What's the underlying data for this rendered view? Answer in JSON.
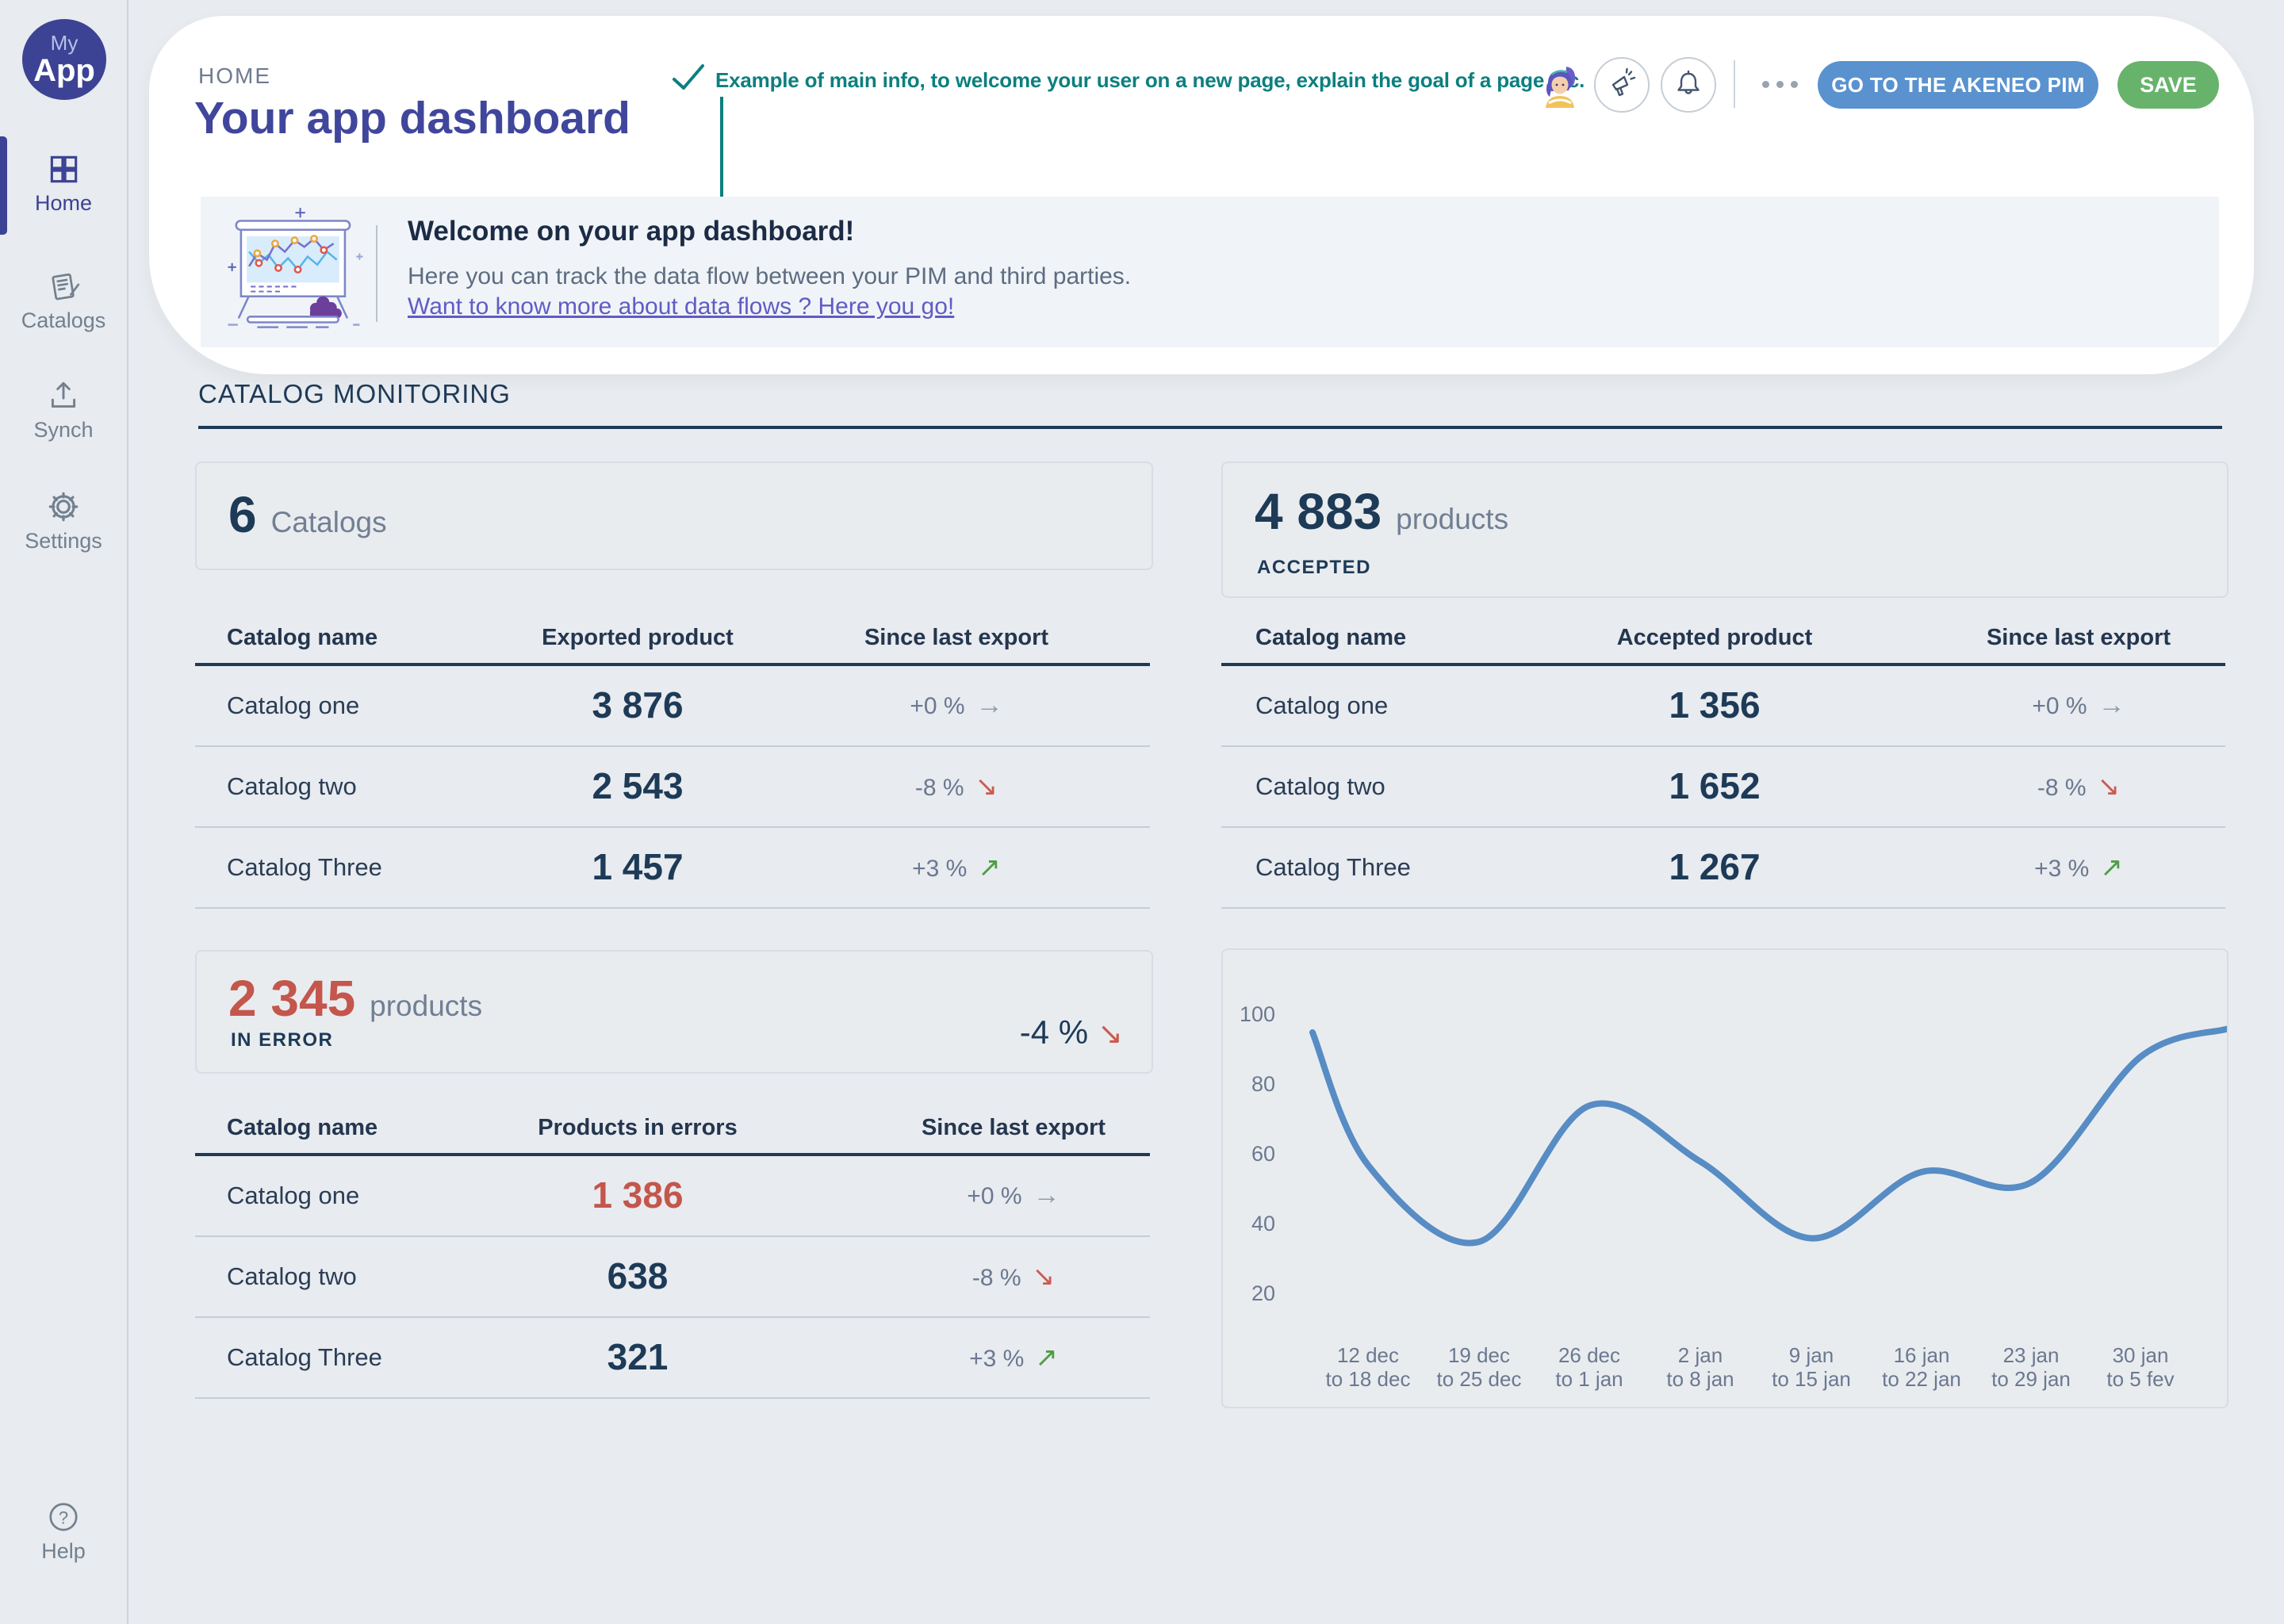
{
  "sidebar": {
    "logo": {
      "top": "My",
      "bottom": "App"
    },
    "items": [
      {
        "id": "home",
        "label": "Home",
        "active": true
      },
      {
        "id": "catalogs",
        "label": "Catalogs",
        "active": false
      },
      {
        "id": "synch",
        "label": "Synch",
        "active": false
      },
      {
        "id": "settings",
        "label": "Settings",
        "active": false
      }
    ],
    "help_label": "Help"
  },
  "header": {
    "breadcrumb": "HOME",
    "title": "Your app dashboard",
    "annotation": "Example of main info, to welcome your user on a new page, explain the goal of a page etc.",
    "pim_button": "GO TO THE AKENEO PIM",
    "save_button": "SAVE"
  },
  "welcome_banner": {
    "title": "Welcome on your app dashboard!",
    "body": "Here you can track the data flow between your PIM and third parties.",
    "link": "Want to know more about data flows ? Here you go!"
  },
  "monitoring": {
    "section_title": "CATALOG MONITORING",
    "catalogs_card": {
      "value": "6",
      "unit": "Catalogs"
    },
    "accepted_card": {
      "value": "4 883",
      "unit": "products",
      "caption": "ACCEPTED"
    },
    "error_card": {
      "value": "2 345",
      "unit": "products",
      "caption": "IN ERROR",
      "change": "-4 %",
      "trend": "down"
    },
    "exported_table": {
      "headers": [
        "Catalog name",
        "Exported product",
        "Since last export"
      ],
      "rows": [
        {
          "name": "Catalog one",
          "value": "3 876",
          "change": "+0 %",
          "trend": "flat"
        },
        {
          "name": "Catalog two",
          "value": "2 543",
          "change": "-8 %",
          "trend": "down"
        },
        {
          "name": "Catalog Three",
          "value": "1 457",
          "change": "+3 %",
          "trend": "up"
        }
      ]
    },
    "accepted_table": {
      "headers": [
        "Catalog name",
        "Accepted product",
        "Since last export"
      ],
      "rows": [
        {
          "name": "Catalog one",
          "value": "1 356",
          "change": "+0 %",
          "trend": "flat"
        },
        {
          "name": "Catalog two",
          "value": "1 652",
          "change": "-8 %",
          "trend": "down"
        },
        {
          "name": "Catalog Three",
          "value": "1 267",
          "change": "+3 %",
          "trend": "up"
        }
      ]
    },
    "error_table": {
      "headers": [
        "Catalog name",
        "Products in errors",
        "Since last export"
      ],
      "rows": [
        {
          "name": "Catalog one",
          "value": "1 386",
          "change": "+0 %",
          "trend": "flat",
          "highlight": true
        },
        {
          "name": "Catalog two",
          "value": "638",
          "change": "-8 %",
          "trend": "down",
          "highlight": false
        },
        {
          "name": "Catalog Three",
          "value": "321",
          "change": "+3 %",
          "trend": "up",
          "highlight": false
        }
      ]
    }
  },
  "trend_glyphs": {
    "flat": "→",
    "down": "↘",
    "up": "↗"
  },
  "chart_data": {
    "type": "line",
    "title": "",
    "xlabel": "",
    "ylabel": "",
    "categories": [
      [
        "12 dec",
        "to 18 dec"
      ],
      [
        "19 dec",
        "to 25 dec"
      ],
      [
        "26 dec",
        "to 1 jan"
      ],
      [
        "2 jan",
        "to 8 jan"
      ],
      [
        "9 jan",
        "to 15 jan"
      ],
      [
        "16 jan",
        "to 22 jan"
      ],
      [
        "23 jan",
        "to 29 jan"
      ],
      [
        "30 jan",
        "to 5 fev"
      ]
    ],
    "values": [
      57,
      35,
      74,
      58,
      36,
      55,
      52,
      88
    ],
    "edge_values": {
      "start": 95,
      "end": 96
    },
    "ylim": [
      0,
      100
    ],
    "yticks": [
      100,
      80,
      60,
      40,
      20
    ],
    "grid": false,
    "legend": "none",
    "line_color": "#578cc4"
  },
  "colors": {
    "brand_indigo": "#3c4394",
    "title_indigo": "#40469c",
    "annotation_teal": "#0d7f7f",
    "pim_button_blue": "#5992cf",
    "save_button_green": "#68b36b",
    "error_red": "#c4564c",
    "trend_up_green": "#4f9d45",
    "trend_down_red": "#cb5a50",
    "navy_text": "#1d3a57",
    "link_purple": "#5f5cc5"
  }
}
